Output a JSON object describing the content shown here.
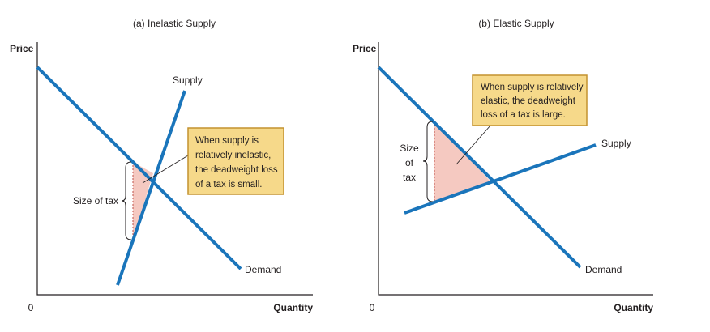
{
  "panels": [
    {
      "id": "a",
      "title": "(a) Inelastic Supply",
      "y_axis_label": "Price",
      "x_axis_label": "Quantity",
      "origin_label": "0",
      "supply_label": "Supply",
      "demand_label": "Demand",
      "tax_label": "Size of tax",
      "callout_lines": [
        "When supply is",
        "relatively inelastic,",
        "the deadweight loss",
        "of a tax is small."
      ]
    },
    {
      "id": "b",
      "title": "(b) Elastic Supply",
      "y_axis_label": "Price",
      "x_axis_label": "Quantity",
      "origin_label": "0",
      "supply_label": "Supply",
      "demand_label": "Demand",
      "tax_label_lines": [
        "Size",
        "of",
        "tax"
      ],
      "callout_lines": [
        "When supply is relatively",
        "elastic, the deadweight",
        "loss of a tax is large."
      ]
    }
  ],
  "colors": {
    "curve": "#1a75bb",
    "deadweight_loss": "#f5c9c1",
    "callout_fill": "#f6d98a",
    "callout_border": "#c4922f"
  }
}
